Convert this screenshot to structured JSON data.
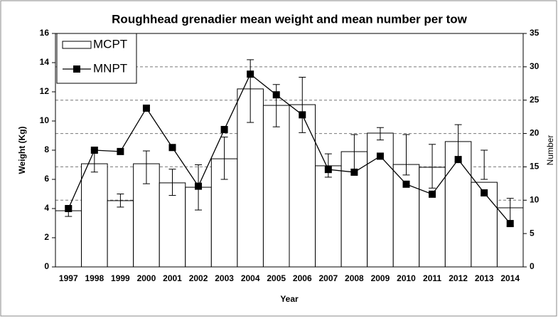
{
  "chart_data": {
    "type": "bar-line",
    "title": "Roughhead grenadier mean weight and mean number per tow",
    "x_label": "Year",
    "y_label": "Weight (Kg)",
    "y2_label": "Number",
    "categories": [
      "1997",
      "1998",
      "1999",
      "2000",
      "2001",
      "2002",
      "2003",
      "2004",
      "2005",
      "2006",
      "2007",
      "2008",
      "2009",
      "2010",
      "2011",
      "2012",
      "2013",
      "2014"
    ],
    "series": [
      {
        "name": "MCPT",
        "type": "bar",
        "color": "#ffffff",
        "values": [
          3.85,
          7.07,
          4.54,
          7.07,
          5.76,
          5.46,
          7.41,
          12.2,
          11.07,
          11.12,
          6.93,
          7.9,
          9.17,
          7.02,
          6.83,
          8.59,
          5.8,
          4.05
        ],
        "error_low": [
          3.46,
          6.5,
          4.1,
          5.7,
          4.9,
          3.9,
          6.0,
          9.9,
          9.6,
          9.2,
          6.15,
          6.7,
          8.7,
          6.3,
          5.4,
          7.2,
          6.0,
          2.8
        ],
        "error_high": [
          4.1,
          8.05,
          5.0,
          7.95,
          6.7,
          7.0,
          8.9,
          14.2,
          12.5,
          13.0,
          7.75,
          9.07,
          9.55,
          9.07,
          8.4,
          9.75,
          8.0,
          4.7
        ]
      },
      {
        "name": "MNPT",
        "type": "line",
        "color": "#000000",
        "axis": "y2",
        "values": [
          8.75,
          17.5,
          17.3,
          23.8,
          17.9,
          12.1,
          20.6,
          28.9,
          25.8,
          22.8,
          14.6,
          14.2,
          16.6,
          12.4,
          10.9,
          16.1,
          11.1,
          6.5
        ]
      }
    ],
    "ylim": [
      0,
      16
    ],
    "yticks": [
      0,
      2,
      4,
      6,
      8,
      10,
      12,
      14,
      16
    ],
    "y2lim": [
      0,
      35
    ],
    "y2ticks": [
      0,
      5,
      10,
      15,
      20,
      25,
      30,
      35
    ],
    "grid": true,
    "legend": "top-left"
  }
}
